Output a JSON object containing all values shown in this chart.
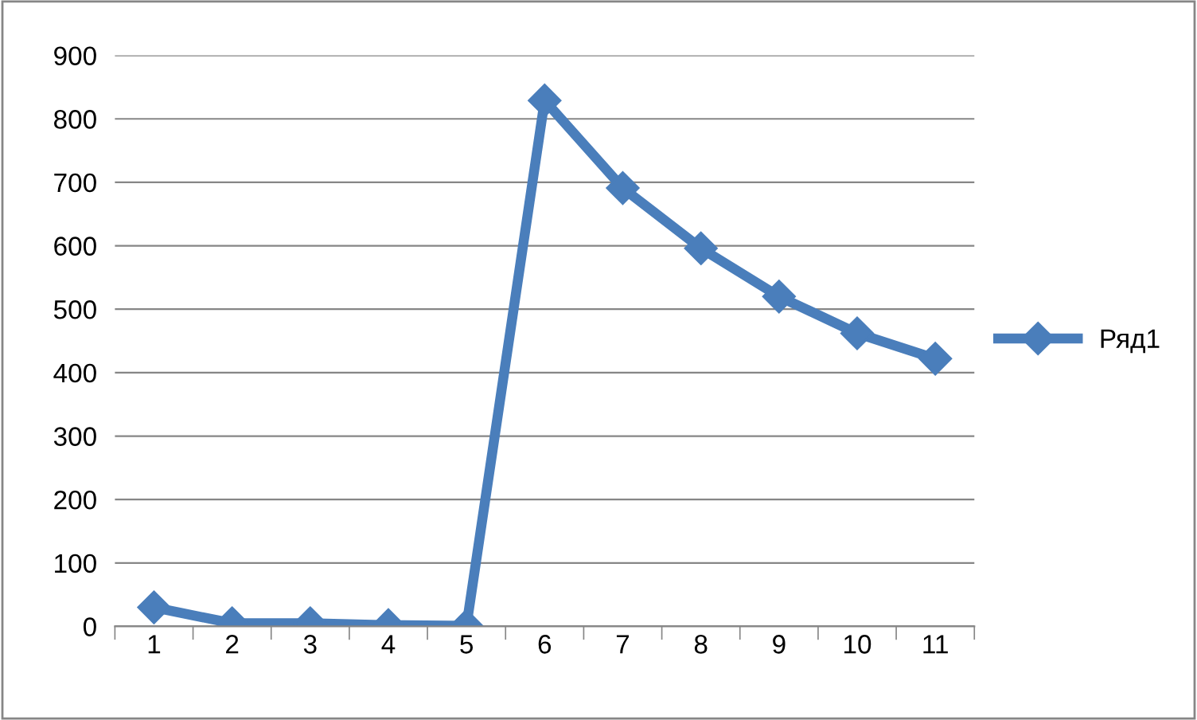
{
  "chart_data": {
    "type": "line",
    "categories": [
      "1",
      "2",
      "3",
      "4",
      "5",
      "6",
      "7",
      "8",
      "9",
      "10",
      "11"
    ],
    "series": [
      {
        "name": "Ряд1",
        "color": "#4a7ebb",
        "values": [
          30,
          5,
          5,
          2,
          1,
          829,
          691,
          596,
          520,
          462,
          422
        ]
      }
    ],
    "ylim": [
      0,
      900
    ],
    "yticks": [
      0,
      100,
      200,
      300,
      400,
      500,
      600,
      700,
      800,
      900
    ],
    "grid": "y",
    "legend": "right",
    "marker": "diamond",
    "line_style": "solid"
  }
}
